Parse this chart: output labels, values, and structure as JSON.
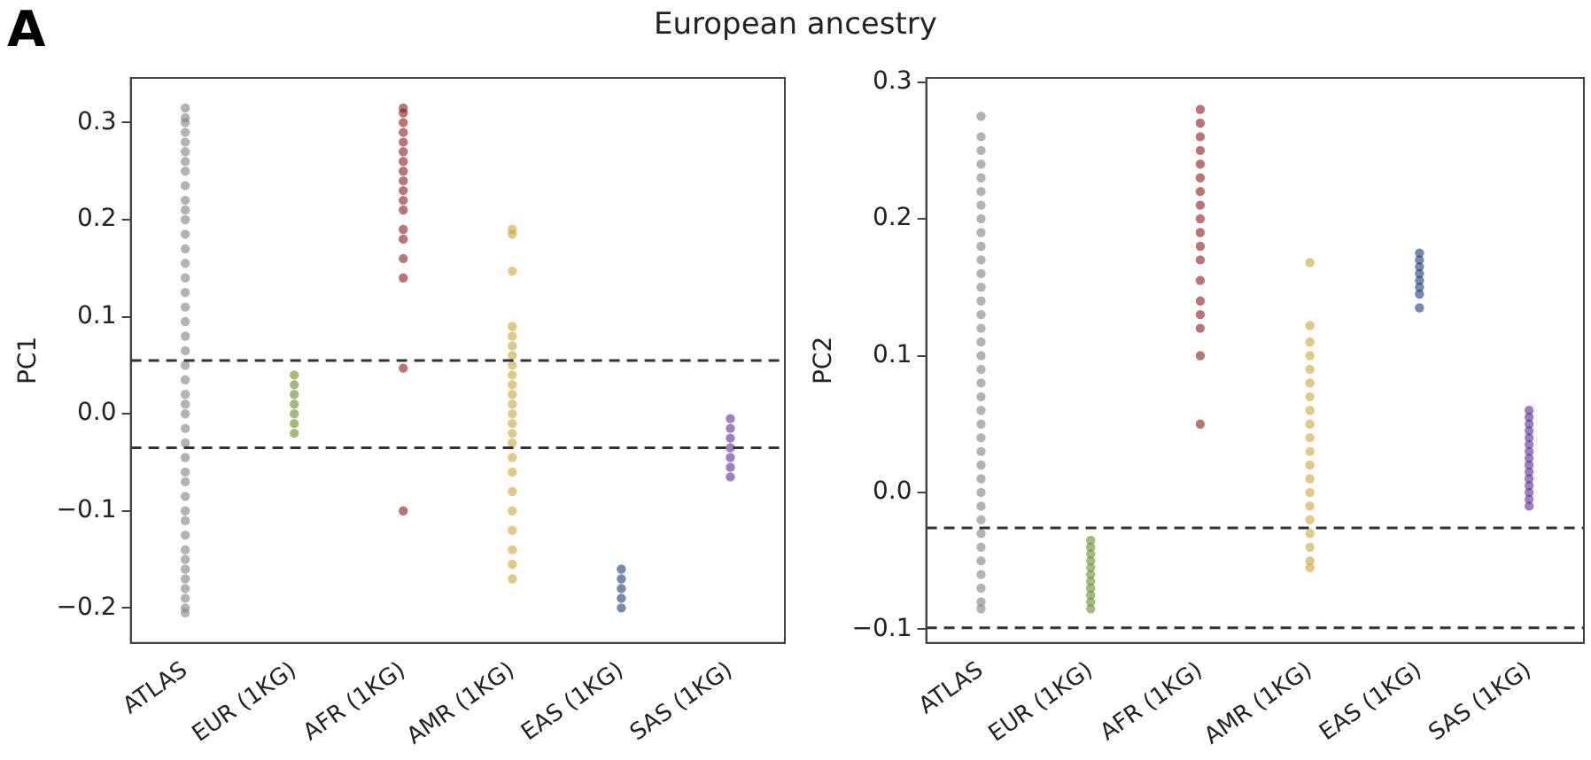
{
  "chart_data": [
    {
      "type": "scatter",
      "title": "European ancestry",
      "annotations": [
        "A"
      ],
      "ylabel": "PC1",
      "categories": [
        "ATLAS",
        "EUR (1KG)",
        "AFR (1KG)",
        "AMR (1KG)",
        "EAS (1KG)",
        "SAS (1KG)"
      ],
      "ylim": [
        -0.236,
        0.346
      ],
      "yticks": [
        {
          "value": -0.2,
          "label": "−0.2"
        },
        {
          "value": -0.1,
          "label": "−0.1"
        },
        {
          "value": 0,
          "label": "0.0"
        },
        {
          "value": 0.1,
          "label": "0.1"
        },
        {
          "value": 0.2,
          "label": "0.2"
        },
        {
          "value": 0.3,
          "label": "0.3"
        }
      ],
      "grid": false,
      "legend": false,
      "marker": "circle",
      "ref_lines": [
        {
          "axis": "y",
          "value": 0.055,
          "color": "#333333",
          "line_style": "dashed"
        },
        {
          "axis": "y",
          "value": -0.035,
          "color": "#333333",
          "line_style": "dashed"
        }
      ],
      "series": [
        {
          "color": "#808080",
          "x": [
            "ATLAS",
            "ATLAS",
            "ATLAS",
            "ATLAS",
            "ATLAS",
            "ATLAS",
            "ATLAS",
            "ATLAS",
            "ATLAS",
            "ATLAS",
            "ATLAS",
            "ATLAS",
            "ATLAS",
            "ATLAS",
            "ATLAS",
            "ATLAS",
            "ATLAS",
            "ATLAS",
            "ATLAS",
            "ATLAS",
            "ATLAS",
            "ATLAS",
            "ATLAS",
            "ATLAS",
            "ATLAS",
            "ATLAS",
            "ATLAS",
            "ATLAS",
            "ATLAS",
            "ATLAS",
            "ATLAS",
            "ATLAS",
            "ATLAS",
            "ATLAS",
            "ATLAS",
            "ATLAS",
            "ATLAS",
            "ATLAS",
            "ATLAS",
            "ATLAS",
            "ATLAS",
            "ATLAS",
            "ATLAS"
          ],
          "values": [
            -0.205,
            -0.2,
            -0.19,
            -0.18,
            -0.17,
            -0.16,
            -0.15,
            -0.14,
            -0.125,
            -0.11,
            -0.1,
            -0.085,
            -0.07,
            -0.06,
            -0.045,
            -0.03,
            -0.015,
            0,
            0.01,
            0.02,
            0.035,
            0.05,
            0.065,
            0.08,
            0.095,
            0.11,
            0.125,
            0.14,
            0.155,
            0.17,
            0.185,
            0.2,
            0.21,
            0.22,
            0.235,
            0.25,
            0.26,
            0.27,
            0.28,
            0.29,
            0.3,
            0.305,
            0.315
          ]
        },
        {
          "color": "#6b8e23",
          "x": [
            "EUR (1KG)",
            "EUR (1KG)",
            "EUR (1KG)",
            "EUR (1KG)",
            "EUR (1KG)",
            "EUR (1KG)",
            "EUR (1KG)"
          ],
          "values": [
            -0.02,
            -0.01,
            0,
            0.01,
            0.02,
            0.03,
            0.04
          ]
        },
        {
          "color": "#8b1a1a",
          "x": [
            "AFR (1KG)",
            "AFR (1KG)",
            "AFR (1KG)",
            "AFR (1KG)",
            "AFR (1KG)",
            "AFR (1KG)",
            "AFR (1KG)",
            "AFR (1KG)",
            "AFR (1KG)",
            "AFR (1KG)",
            "AFR (1KG)",
            "AFR (1KG)",
            "AFR (1KG)",
            "AFR (1KG)",
            "AFR (1KG)",
            "AFR (1KG)",
            "AFR (1KG)",
            "AFR (1KG)"
          ],
          "values": [
            0.315,
            0.31,
            0.3,
            0.29,
            0.28,
            0.27,
            0.26,
            0.25,
            0.24,
            0.23,
            0.22,
            0.21,
            0.19,
            0.18,
            0.16,
            0.14,
            0.047,
            -0.1
          ]
        },
        {
          "color": "#c8a83a",
          "x": [
            "AMR (1KG)",
            "AMR (1KG)",
            "AMR (1KG)",
            "AMR (1KG)",
            "AMR (1KG)",
            "AMR (1KG)",
            "AMR (1KG)",
            "AMR (1KG)",
            "AMR (1KG)",
            "AMR (1KG)",
            "AMR (1KG)",
            "AMR (1KG)",
            "AMR (1KG)",
            "AMR (1KG)",
            "AMR (1KG)",
            "AMR (1KG)",
            "AMR (1KG)",
            "AMR (1KG)",
            "AMR (1KG)",
            "AMR (1KG)",
            "AMR (1KG)",
            "AMR (1KG)",
            "AMR (1KG)",
            "AMR (1KG)"
          ],
          "values": [
            0.19,
            0.185,
            0.147,
            0.09,
            0.08,
            0.07,
            0.06,
            0.05,
            0.04,
            0.03,
            0.02,
            0.01,
            0,
            -0.01,
            -0.02,
            -0.03,
            -0.045,
            -0.06,
            -0.08,
            -0.1,
            -0.12,
            -0.14,
            -0.155,
            -0.17
          ]
        },
        {
          "color": "#1a3a7a",
          "x": [
            "EAS (1KG)",
            "EAS (1KG)",
            "EAS (1KG)",
            "EAS (1KG)",
            "EAS (1KG)"
          ],
          "values": [
            -0.2,
            -0.19,
            -0.18,
            -0.17,
            -0.16
          ]
        },
        {
          "color": "#5a2d91",
          "x": [
            "SAS (1KG)",
            "SAS (1KG)",
            "SAS (1KG)",
            "SAS (1KG)",
            "SAS (1KG)",
            "SAS (1KG)",
            "SAS (1KG)"
          ],
          "values": [
            -0.065,
            -0.055,
            -0.045,
            -0.035,
            -0.025,
            -0.015,
            -0.005
          ]
        }
      ]
    },
    {
      "type": "scatter",
      "ylabel": "PC2",
      "categories": [
        "ATLAS",
        "EUR (1KG)",
        "AFR (1KG)",
        "AMR (1KG)",
        "EAS (1KG)",
        "SAS (1KG)"
      ],
      "ylim": [
        -0.11,
        0.303
      ],
      "yticks": [
        {
          "value": -0.1,
          "label": "−0.1"
        },
        {
          "value": 0,
          "label": "0.0"
        },
        {
          "value": 0.1,
          "label": "0.1"
        },
        {
          "value": 0.2,
          "label": "0.2"
        },
        {
          "value": 0.3,
          "label": "0.3"
        }
      ],
      "grid": false,
      "legend": false,
      "marker": "circle",
      "ref_lines": [
        {
          "axis": "y",
          "value": -0.026,
          "color": "#333333",
          "line_style": "dashed"
        },
        {
          "axis": "y",
          "value": -0.099,
          "color": "#333333",
          "line_style": "dashed"
        }
      ],
      "series": [
        {
          "color": "#808080",
          "x": [
            "ATLAS",
            "ATLAS",
            "ATLAS",
            "ATLAS",
            "ATLAS",
            "ATLAS",
            "ATLAS",
            "ATLAS",
            "ATLAS",
            "ATLAS",
            "ATLAS",
            "ATLAS",
            "ATLAS",
            "ATLAS",
            "ATLAS",
            "ATLAS",
            "ATLAS",
            "ATLAS",
            "ATLAS",
            "ATLAS",
            "ATLAS",
            "ATLAS",
            "ATLAS",
            "ATLAS",
            "ATLAS",
            "ATLAS",
            "ATLAS",
            "ATLAS",
            "ATLAS",
            "ATLAS",
            "ATLAS",
            "ATLAS",
            "ATLAS",
            "ATLAS",
            "ATLAS",
            "ATLAS",
            "ATLAS"
          ],
          "values": [
            -0.085,
            -0.08,
            -0.07,
            -0.06,
            -0.05,
            -0.04,
            -0.03,
            -0.02,
            -0.01,
            0,
            0.01,
            0.02,
            0.03,
            0.04,
            0.05,
            0.06,
            0.07,
            0.08,
            0.09,
            0.1,
            0.11,
            0.12,
            0.13,
            0.14,
            0.15,
            0.16,
            0.17,
            0.18,
            0.19,
            0.2,
            0.21,
            0.22,
            0.23,
            0.24,
            0.25,
            0.26,
            0.275
          ]
        },
        {
          "color": "#6b8e23",
          "x": [
            "EUR (1KG)",
            "EUR (1KG)",
            "EUR (1KG)",
            "EUR (1KG)",
            "EUR (1KG)",
            "EUR (1KG)",
            "EUR (1KG)",
            "EUR (1KG)",
            "EUR (1KG)",
            "EUR (1KG)",
            "EUR (1KG)"
          ],
          "values": [
            -0.085,
            -0.08,
            -0.075,
            -0.07,
            -0.065,
            -0.06,
            -0.055,
            -0.05,
            -0.045,
            -0.04,
            -0.035
          ]
        },
        {
          "color": "#8b1a1a",
          "x": [
            "AFR (1KG)",
            "AFR (1KG)",
            "AFR (1KG)",
            "AFR (1KG)",
            "AFR (1KG)",
            "AFR (1KG)",
            "AFR (1KG)",
            "AFR (1KG)",
            "AFR (1KG)",
            "AFR (1KG)",
            "AFR (1KG)",
            "AFR (1KG)",
            "AFR (1KG)",
            "AFR (1KG)",
            "AFR (1KG)",
            "AFR (1KG)",
            "AFR (1KG)",
            "AFR (1KG)"
          ],
          "values": [
            0.28,
            0.27,
            0.26,
            0.25,
            0.24,
            0.23,
            0.22,
            0.21,
            0.2,
            0.19,
            0.18,
            0.17,
            0.155,
            0.14,
            0.13,
            0.12,
            0.1,
            0.05
          ]
        },
        {
          "color": "#c8a83a",
          "x": [
            "AMR (1KG)",
            "AMR (1KG)",
            "AMR (1KG)",
            "AMR (1KG)",
            "AMR (1KG)",
            "AMR (1KG)",
            "AMR (1KG)",
            "AMR (1KG)",
            "AMR (1KG)",
            "AMR (1KG)",
            "AMR (1KG)",
            "AMR (1KG)",
            "AMR (1KG)",
            "AMR (1KG)",
            "AMR (1KG)",
            "AMR (1KG)",
            "AMR (1KG)",
            "AMR (1KG)",
            "AMR (1KG)",
            "AMR (1KG)"
          ],
          "values": [
            0.168,
            0.122,
            0.11,
            0.1,
            0.09,
            0.08,
            0.07,
            0.06,
            0.05,
            0.04,
            0.03,
            0.02,
            0.01,
            0,
            -0.01,
            -0.02,
            -0.03,
            -0.04,
            -0.05,
            -0.055
          ]
        },
        {
          "color": "#1a3a7a",
          "x": [
            "EAS (1KG)",
            "EAS (1KG)",
            "EAS (1KG)",
            "EAS (1KG)",
            "EAS (1KG)",
            "EAS (1KG)",
            "EAS (1KG)",
            "EAS (1KG)"
          ],
          "values": [
            0.135,
            0.145,
            0.15,
            0.155,
            0.16,
            0.165,
            0.17,
            0.175
          ]
        },
        {
          "color": "#5a2d91",
          "x": [
            "SAS (1KG)",
            "SAS (1KG)",
            "SAS (1KG)",
            "SAS (1KG)",
            "SAS (1KG)",
            "SAS (1KG)",
            "SAS (1KG)",
            "SAS (1KG)",
            "SAS (1KG)",
            "SAS (1KG)",
            "SAS (1KG)",
            "SAS (1KG)",
            "SAS (1KG)",
            "SAS (1KG)",
            "SAS (1KG)"
          ],
          "values": [
            -0.01,
            -0.005,
            0,
            0.005,
            0.01,
            0.015,
            0.02,
            0.025,
            0.03,
            0.035,
            0.04,
            0.045,
            0.05,
            0.055,
            0.06
          ]
        }
      ]
    }
  ]
}
